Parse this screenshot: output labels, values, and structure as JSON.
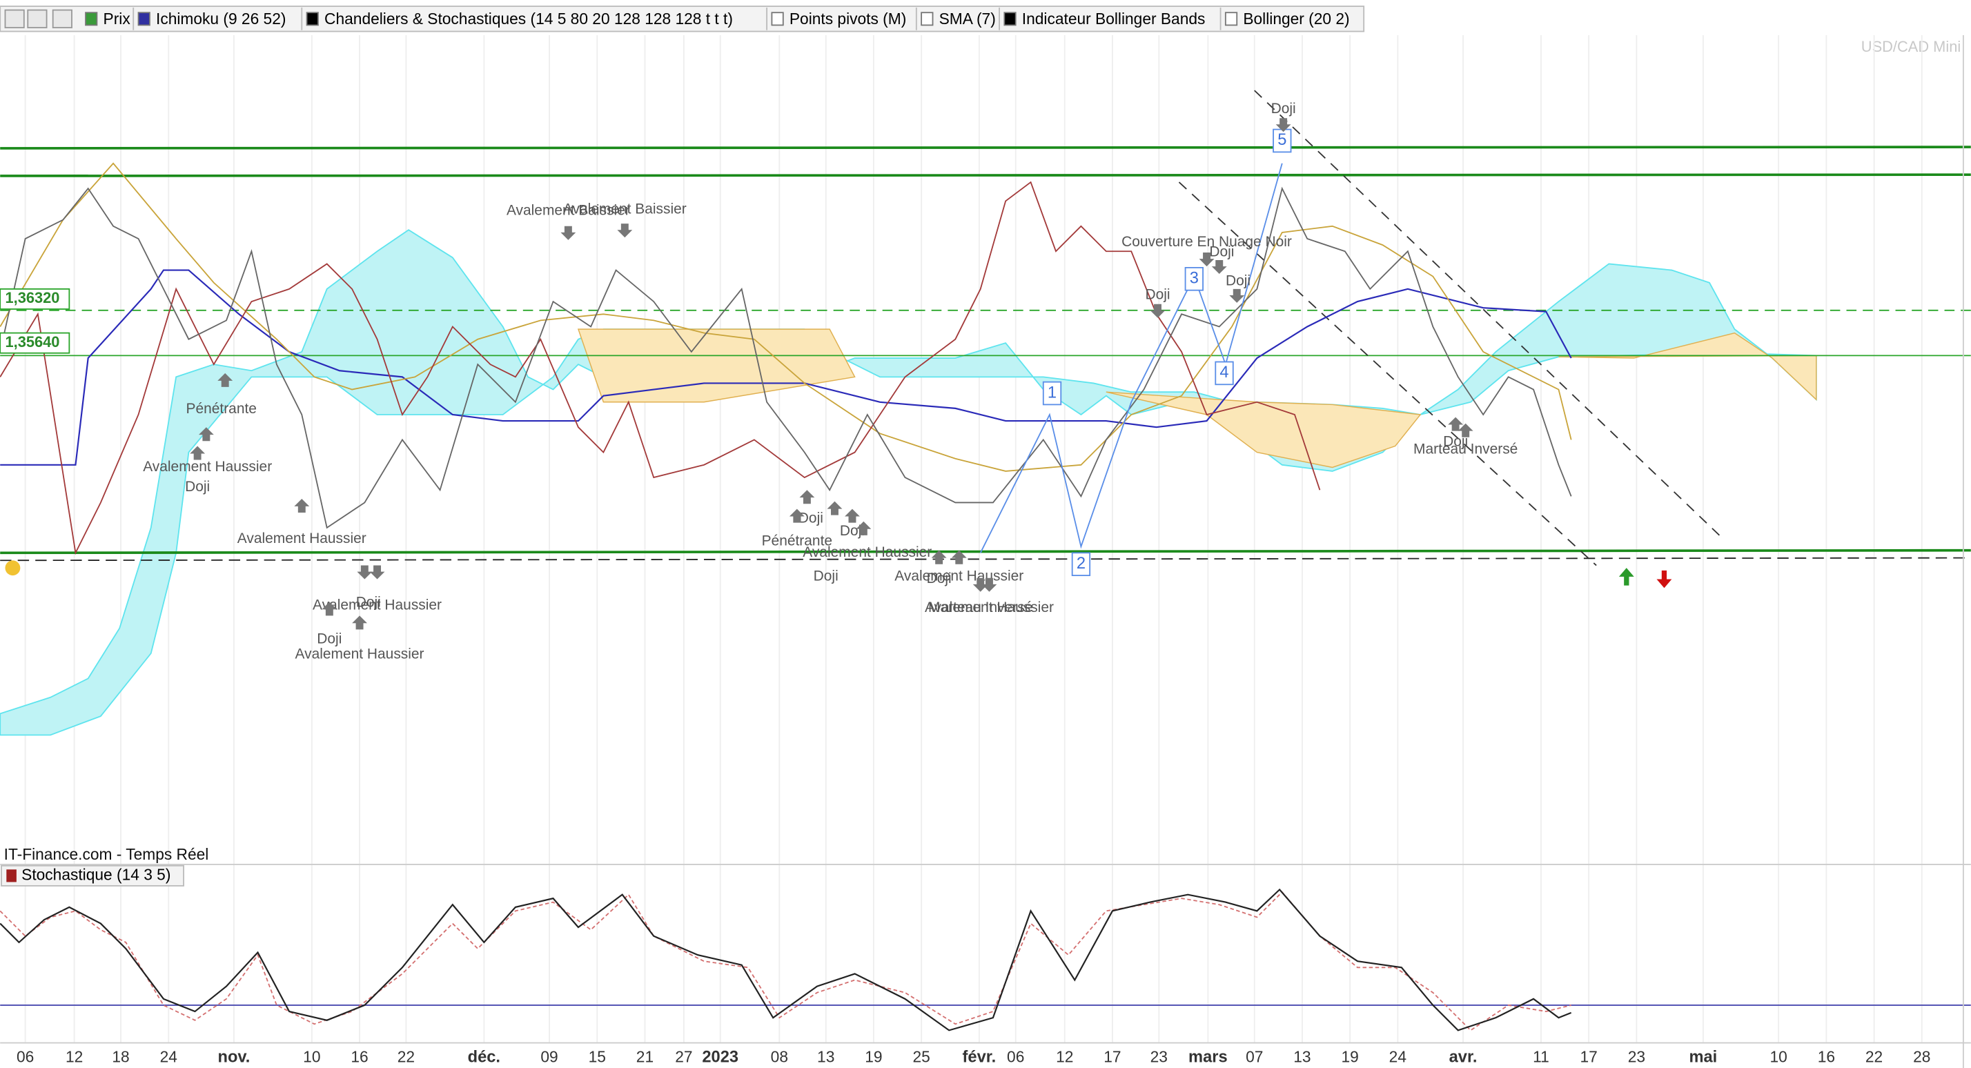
{
  "toolbar": {
    "items": [
      "Prix",
      "Ichimoku (9 26 52)",
      "Chandeliers & Stochastiques (14 5 80 20 128 128 128 t t t)",
      "Points pivots (M)",
      "SMA (7)",
      "Indicateur Bollinger Bands",
      "Bollinger (20 2)"
    ]
  },
  "symbol": "USD/CAD Mini",
  "price_labels": [
    "1,36320",
    "1,35640"
  ],
  "source": "IT-Finance.com - Temps Réel",
  "indicator": "Stochastique (14 3 5)",
  "wave_labels": [
    "1",
    "2",
    "3",
    "4",
    "5"
  ],
  "annotations": [
    "Avalement Baissier",
    "Avalement Baissier",
    "Pénétrante",
    "Avalement Haussier",
    "Doji",
    "Avalement Haussier",
    "Doji",
    "Avalement Haussier",
    "Doji",
    "Avalement Haussier",
    "Doji",
    "Couverture En Nuage Noir",
    "Doji",
    "Doji",
    "Doji",
    "Doji",
    "Pénétrante",
    "Doji",
    "Avalement Haussier",
    "Doji",
    "Avalement Haussier",
    "Doji",
    "Marteau Inversé",
    "Avalement Haussier",
    "Doji",
    "Marteau Inversé"
  ],
  "x_axis": [
    "06",
    "12",
    "18",
    "24",
    "nov.",
    "10",
    "16",
    "22",
    "déc.",
    "09",
    "15",
    "21",
    "27",
    "2023",
    "08",
    "13",
    "19",
    "25",
    "févr.",
    "06",
    "12",
    "17",
    "23",
    "mars",
    "07",
    "13",
    "19",
    "24",
    "avr.",
    "11",
    "17",
    "23",
    "mai",
    "10",
    "16",
    "22",
    "28"
  ]
}
